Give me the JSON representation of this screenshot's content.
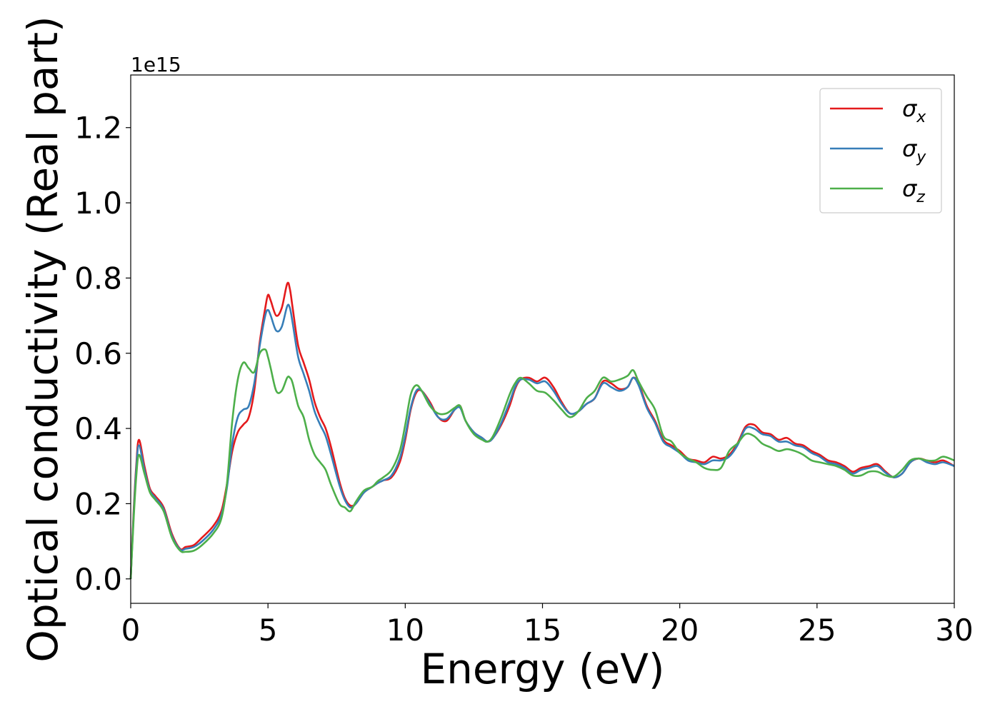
{
  "chart_data": {
    "type": "line",
    "title": "",
    "xlabel": "Energy (eV)",
    "ylabel": "Optical conductivity (Real part)",
    "y_multiplier": "1e15",
    "xlim": [
      0,
      30
    ],
    "ylim": [
      -0.065,
      1.34
    ],
    "xticks": [
      0,
      5,
      10,
      15,
      20,
      25,
      30
    ],
    "xtick_labels": [
      "0",
      "5",
      "10",
      "15",
      "20",
      "25",
      "30"
    ],
    "yticks": [
      0.0,
      0.2,
      0.4,
      0.6,
      0.8,
      1.0,
      1.2
    ],
    "ytick_labels": [
      "0.0",
      "0.2",
      "0.4",
      "0.6",
      "0.8",
      "1.0",
      "1.2"
    ],
    "grid": false,
    "legend_position": "top-right",
    "series": [
      {
        "name": "σx",
        "legend_symbol": "σ",
        "legend_subscript": "x",
        "color": "#e41a1c",
        "x": [
          0,
          0.1,
          0.2,
          0.3,
          0.5,
          0.7,
          0.9,
          1.2,
          1.5,
          1.8,
          2.0,
          2.3,
          2.6,
          3.0,
          3.3,
          3.5,
          3.7,
          3.9,
          4.1,
          4.3,
          4.5,
          4.7,
          4.9,
          5.0,
          5.1,
          5.3,
          5.5,
          5.7,
          5.8,
          5.9,
          6.1,
          6.3,
          6.5,
          6.7,
          6.9,
          7.1,
          7.3,
          7.6,
          7.8,
          8.0,
          8.2,
          8.5,
          8.8,
          9.0,
          9.2,
          9.5,
          9.8,
          10.0,
          10.2,
          10.4,
          10.6,
          10.9,
          11.2,
          11.5,
          11.8,
          12.0,
          12.2,
          12.5,
          12.8,
          13.0,
          13.2,
          13.5,
          13.8,
          14.0,
          14.2,
          14.5,
          14.8,
          15.1,
          15.4,
          15.7,
          16.0,
          16.3,
          16.6,
          16.9,
          17.2,
          17.5,
          17.8,
          18.1,
          18.3,
          18.5,
          18.8,
          19.1,
          19.4,
          19.7,
          20.0,
          20.3,
          20.6,
          20.9,
          21.2,
          21.5,
          21.8,
          22.1,
          22.4,
          22.7,
          23.0,
          23.3,
          23.6,
          23.9,
          24.2,
          24.5,
          24.8,
          25.1,
          25.4,
          25.7,
          26.0,
          26.3,
          26.6,
          26.9,
          27.2,
          27.5,
          27.8,
          28.1,
          28.4,
          28.7,
          29.0,
          29.3,
          29.6,
          30.0
        ],
        "y": [
          0.0,
          0.17,
          0.3,
          0.37,
          0.3,
          0.24,
          0.22,
          0.19,
          0.12,
          0.08,
          0.085,
          0.09,
          0.11,
          0.14,
          0.18,
          0.25,
          0.34,
          0.39,
          0.41,
          0.43,
          0.5,
          0.63,
          0.72,
          0.755,
          0.74,
          0.7,
          0.72,
          0.785,
          0.77,
          0.72,
          0.62,
          0.575,
          0.53,
          0.47,
          0.43,
          0.4,
          0.35,
          0.26,
          0.215,
          0.195,
          0.2,
          0.23,
          0.245,
          0.255,
          0.262,
          0.27,
          0.31,
          0.37,
          0.45,
          0.495,
          0.5,
          0.47,
          0.43,
          0.42,
          0.45,
          0.46,
          0.42,
          0.39,
          0.375,
          0.365,
          0.375,
          0.41,
          0.46,
          0.505,
          0.53,
          0.535,
          0.525,
          0.535,
          0.51,
          0.47,
          0.44,
          0.445,
          0.465,
          0.48,
          0.525,
          0.52,
          0.505,
          0.51,
          0.535,
          0.52,
          0.46,
          0.42,
          0.37,
          0.355,
          0.34,
          0.32,
          0.315,
          0.31,
          0.325,
          0.32,
          0.33,
          0.36,
          0.405,
          0.41,
          0.39,
          0.385,
          0.37,
          0.375,
          0.36,
          0.355,
          0.34,
          0.33,
          0.315,
          0.31,
          0.3,
          0.285,
          0.295,
          0.3,
          0.305,
          0.285,
          0.27,
          0.28,
          0.31,
          0.32,
          0.315,
          0.31,
          0.315,
          0.3
        ]
      },
      {
        "name": "σy",
        "legend_symbol": "σ",
        "legend_subscript": "y",
        "color": "#377eb8",
        "x": [
          0,
          0.1,
          0.2,
          0.3,
          0.5,
          0.7,
          0.9,
          1.2,
          1.5,
          1.8,
          2.0,
          2.3,
          2.6,
          3.0,
          3.3,
          3.5,
          3.7,
          3.9,
          4.1,
          4.3,
          4.5,
          4.7,
          4.9,
          5.0,
          5.1,
          5.3,
          5.5,
          5.7,
          5.8,
          5.9,
          6.1,
          6.3,
          6.5,
          6.7,
          6.9,
          7.1,
          7.3,
          7.6,
          7.8,
          8.0,
          8.2,
          8.5,
          8.8,
          9.0,
          9.2,
          9.5,
          9.8,
          10.0,
          10.2,
          10.4,
          10.6,
          10.9,
          11.2,
          11.5,
          11.8,
          12.0,
          12.2,
          12.5,
          12.8,
          13.0,
          13.2,
          13.5,
          13.8,
          14.0,
          14.2,
          14.5,
          14.8,
          15.1,
          15.4,
          15.7,
          16.0,
          16.3,
          16.6,
          16.9,
          17.2,
          17.5,
          17.8,
          18.1,
          18.3,
          18.5,
          18.8,
          19.1,
          19.4,
          19.7,
          20.0,
          20.3,
          20.6,
          20.9,
          21.2,
          21.5,
          21.8,
          22.1,
          22.4,
          22.7,
          23.0,
          23.3,
          23.6,
          23.9,
          24.2,
          24.5,
          24.8,
          25.1,
          25.4,
          25.7,
          26.0,
          26.3,
          26.6,
          26.9,
          27.2,
          27.5,
          27.8,
          28.1,
          28.4,
          28.7,
          29.0,
          29.3,
          29.6,
          30.0
        ],
        "y": [
          0.0,
          0.16,
          0.29,
          0.355,
          0.29,
          0.235,
          0.215,
          0.185,
          0.115,
          0.078,
          0.08,
          0.085,
          0.1,
          0.13,
          0.17,
          0.24,
          0.36,
          0.43,
          0.45,
          0.46,
          0.52,
          0.62,
          0.7,
          0.715,
          0.7,
          0.66,
          0.67,
          0.725,
          0.72,
          0.68,
          0.59,
          0.545,
          0.5,
          0.445,
          0.41,
          0.38,
          0.33,
          0.25,
          0.21,
          0.19,
          0.2,
          0.23,
          0.245,
          0.255,
          0.262,
          0.275,
          0.32,
          0.38,
          0.455,
          0.5,
          0.5,
          0.465,
          0.43,
          0.425,
          0.45,
          0.455,
          0.42,
          0.39,
          0.375,
          0.365,
          0.375,
          0.415,
          0.47,
          0.51,
          0.53,
          0.53,
          0.52,
          0.525,
          0.5,
          0.465,
          0.44,
          0.445,
          0.465,
          0.48,
          0.52,
          0.51,
          0.5,
          0.51,
          0.535,
          0.515,
          0.455,
          0.415,
          0.365,
          0.35,
          0.335,
          0.315,
          0.31,
          0.305,
          0.315,
          0.315,
          0.325,
          0.355,
          0.4,
          0.4,
          0.385,
          0.38,
          0.365,
          0.365,
          0.355,
          0.35,
          0.335,
          0.325,
          0.31,
          0.305,
          0.295,
          0.28,
          0.29,
          0.295,
          0.3,
          0.282,
          0.27,
          0.28,
          0.31,
          0.32,
          0.31,
          0.305,
          0.31,
          0.3
        ]
      },
      {
        "name": "σz",
        "legend_symbol": "σ",
        "legend_subscript": "z",
        "color": "#4daf4a",
        "x": [
          0,
          0.1,
          0.2,
          0.3,
          0.5,
          0.7,
          0.9,
          1.2,
          1.5,
          1.8,
          2.0,
          2.3,
          2.6,
          3.0,
          3.3,
          3.5,
          3.7,
          3.9,
          4.1,
          4.3,
          4.5,
          4.7,
          4.9,
          5.0,
          5.1,
          5.3,
          5.5,
          5.7,
          5.8,
          5.9,
          6.1,
          6.3,
          6.5,
          6.7,
          6.9,
          7.1,
          7.3,
          7.6,
          7.8,
          8.0,
          8.2,
          8.5,
          8.8,
          9.0,
          9.2,
          9.5,
          9.8,
          10.0,
          10.2,
          10.4,
          10.6,
          10.9,
          11.2,
          11.5,
          11.8,
          12.0,
          12.2,
          12.5,
          12.8,
          13.0,
          13.2,
          13.5,
          13.8,
          14.0,
          14.2,
          14.5,
          14.8,
          15.1,
          15.4,
          15.7,
          16.0,
          16.3,
          16.6,
          16.9,
          17.2,
          17.5,
          17.8,
          18.1,
          18.3,
          18.5,
          18.8,
          19.1,
          19.4,
          19.7,
          20.0,
          20.3,
          20.6,
          20.9,
          21.2,
          21.5,
          21.8,
          22.1,
          22.4,
          22.7,
          23.0,
          23.3,
          23.6,
          23.9,
          24.2,
          24.5,
          24.8,
          25.1,
          25.4,
          25.7,
          26.0,
          26.3,
          26.6,
          26.9,
          27.2,
          27.5,
          27.8,
          28.1,
          28.4,
          28.7,
          29.0,
          29.3,
          29.6,
          30.0
        ],
        "y": [
          0.0,
          0.15,
          0.27,
          0.33,
          0.28,
          0.23,
          0.21,
          0.18,
          0.11,
          0.075,
          0.072,
          0.075,
          0.09,
          0.12,
          0.16,
          0.25,
          0.42,
          0.53,
          0.575,
          0.56,
          0.55,
          0.6,
          0.61,
          0.59,
          0.56,
          0.5,
          0.5,
          0.535,
          0.535,
          0.52,
          0.46,
          0.43,
          0.37,
          0.33,
          0.31,
          0.29,
          0.25,
          0.2,
          0.19,
          0.18,
          0.205,
          0.235,
          0.245,
          0.26,
          0.27,
          0.29,
          0.34,
          0.41,
          0.49,
          0.515,
          0.5,
          0.46,
          0.44,
          0.44,
          0.455,
          0.46,
          0.42,
          0.385,
          0.37,
          0.365,
          0.38,
          0.43,
          0.49,
          0.52,
          0.535,
          0.52,
          0.5,
          0.495,
          0.475,
          0.45,
          0.43,
          0.445,
          0.48,
          0.5,
          0.535,
          0.525,
          0.53,
          0.54,
          0.555,
          0.525,
          0.485,
          0.45,
          0.38,
          0.365,
          0.335,
          0.32,
          0.31,
          0.295,
          0.29,
          0.295,
          0.34,
          0.36,
          0.385,
          0.38,
          0.36,
          0.35,
          0.34,
          0.345,
          0.34,
          0.33,
          0.315,
          0.31,
          0.305,
          0.3,
          0.29,
          0.275,
          0.275,
          0.285,
          0.285,
          0.275,
          0.272,
          0.29,
          0.315,
          0.32,
          0.315,
          0.315,
          0.325,
          0.315
        ]
      }
    ]
  }
}
